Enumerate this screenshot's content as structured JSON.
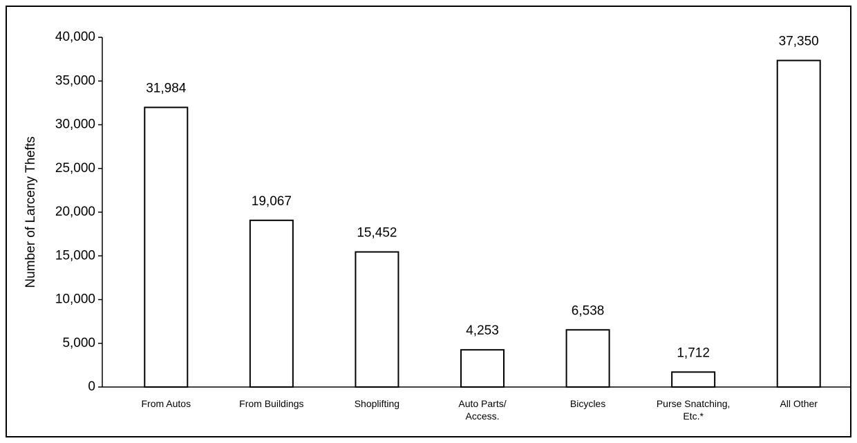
{
  "chart_data": {
    "type": "bar",
    "y_label": "Number of Larceny Thefts",
    "categories": [
      "From Autos",
      "From Buildings",
      "Shoplifting",
      "Auto Parts/\nAccess.",
      "Bicycles",
      "Purse Snatching,\nEtc.*",
      "All Other"
    ],
    "values": [
      31984,
      19067,
      15452,
      4253,
      6538,
      1712,
      37350
    ],
    "value_labels": [
      "31,984",
      "19,067",
      "15,452",
      "4,253",
      "6,538",
      "1,712",
      "37,350"
    ],
    "color": "#ffffff",
    "ylim": [
      0,
      40000
    ],
    "yticks": [
      0,
      {
        "value": 5000,
        "label": "5,000"
      },
      {
        "value": 10000,
        "label": "10,000"
      },
      {
        "value": 15000,
        "label": "15,000"
      },
      {
        "value": 20000,
        "label": "20,000"
      },
      {
        "value": 25000,
        "label": "25,000"
      },
      {
        "value": 30000,
        "label": "30,000"
      },
      {
        "value": 35000,
        "label": "35,000"
      },
      {
        "value": 40000,
        "label": "40,000"
      }
    ],
    "grid": false
  }
}
